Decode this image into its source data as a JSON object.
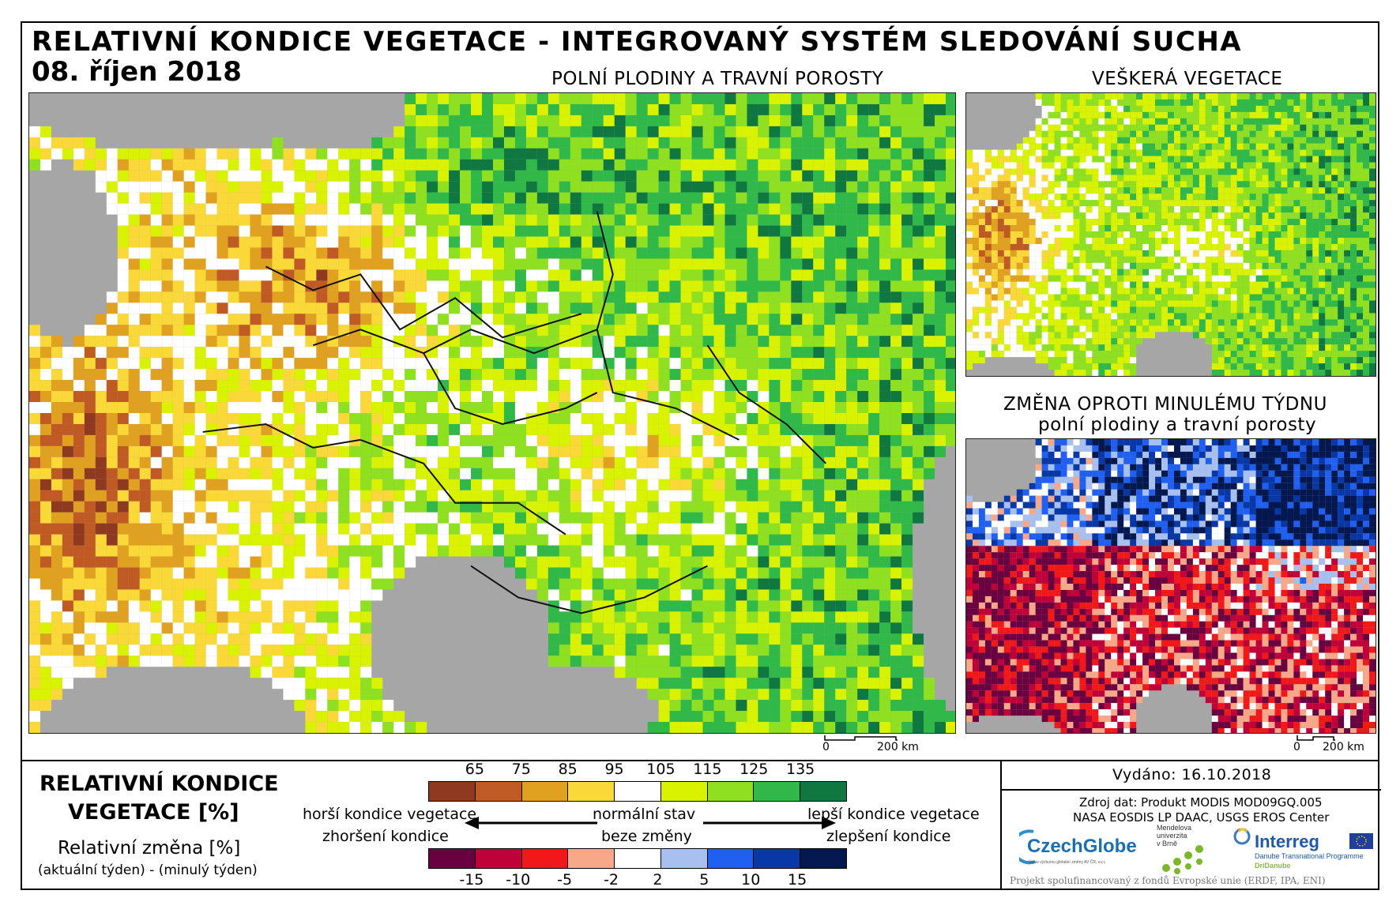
{
  "header": {
    "title": "RELATIVNÍ KONDICE VEGETACE - INTEGROVANÝ SYSTÉM SLEDOVÁNÍ SUCHA",
    "date": "08. říjen 2018"
  },
  "maps": {
    "main_label": "POLNÍ PLODINY A TRAVNÍ POROSTY",
    "all_veg_label": "VEŠKERÁ VEGETACE",
    "change_label_line1": "ZMĚNA OPROTI MINULÉMU TÝDNU",
    "change_label_line2": "polní plodiny a travní porosty",
    "scale_zero": "0",
    "scale_200": "200 km"
  },
  "legend": {
    "title_line1": "RELATIVNÍ KONDICE",
    "title_line2": "VEGETACE [%]",
    "change_title": "Relativní změna [%]",
    "change_formula": "(aktuální týden) - (minulý týden)",
    "condition_ticks": [
      "65",
      "75",
      "85",
      "95",
      "105",
      "115",
      "125",
      "135"
    ],
    "condition_colors": [
      "#8f3a20",
      "#c05a25",
      "#e0a020",
      "#fad838",
      "#ffffff",
      "#d8f200",
      "#8ee020",
      "#30b848",
      "#0e7840"
    ],
    "change_ticks": [
      "-15",
      "-10",
      "-5",
      "-2",
      "2",
      "5",
      "10",
      "15"
    ],
    "change_colors": [
      "#6a0040",
      "#c00038",
      "#f01818",
      "#f8a888",
      "#ffffff",
      "#a8c0f0",
      "#2060f0",
      "#0838a8",
      "#041850"
    ],
    "worse_condition": "horší kondice vegetace",
    "worsening": "zhoršení kondice",
    "normal_state": "normální stav",
    "no_change": "beze změny",
    "better_condition": "lepší kondice vegetace",
    "improvement": "zlepšení kondice"
  },
  "info": {
    "issued": "Vydáno: 16.10.2018",
    "source_line1": "Zdroj dat: Produkt MODIS MOD09GQ.005",
    "source_line2": "NASA EOSDIS LP DAAC, USGS EROS Center",
    "funding": "Projekt spolufinancovaný z fondů Evropské unie (ERDF, IPA, ENI)",
    "logos": {
      "czechglobe": "CzechGlobe",
      "czechglobe_sub": "Ústav výzkumu globální změny AV ČR, v.v.i.",
      "mendel_line1": "Mendelova",
      "mendel_line2": "univerzita",
      "mendel_line3": "v Brně",
      "interreg": "Interreg",
      "interreg_sub": "Danube Transnational Programme",
      "dridanube": "DriDanube"
    }
  }
}
